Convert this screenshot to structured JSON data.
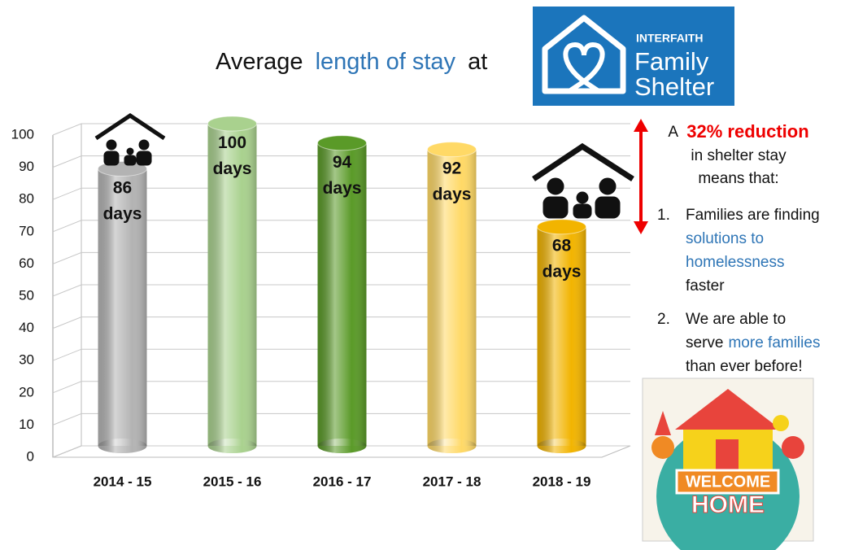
{
  "chart_data": {
    "type": "bar",
    "title": [
      "Average",
      "length of stay",
      "at"
    ],
    "categories": [
      "2014 - 15",
      "2015 - 16",
      "2016 - 17",
      "2017 - 18",
      "2018 - 19"
    ],
    "values": [
      86,
      100,
      94,
      92,
      68
    ],
    "value_labels": [
      "86 days",
      "100 days",
      "94 days",
      "92 days",
      "68 days"
    ],
    "colors": [
      "#b3b3b3",
      "#a9d18e",
      "#5a9a28",
      "#ffd966",
      "#f2b400"
    ],
    "ylim": [
      0,
      100
    ],
    "yticks": [
      0,
      10,
      20,
      30,
      40,
      50,
      60,
      70,
      80,
      90,
      100
    ],
    "grid": true
  },
  "logo": [
    "INTERFAITH",
    "Family",
    "Shelter"
  ],
  "sidebar": {
    "intro": [
      "A",
      "32% reduction",
      "in shelter stay",
      "means that:"
    ],
    "points": [
      {
        "number": "1.",
        "lines": [
          [
            "Families are finding"
          ],
          [
            "solutions to"
          ],
          [
            "homelessness"
          ],
          [
            "faster"
          ]
        ]
      },
      {
        "number": "2.",
        "lines": [
          [
            "We are able to"
          ],
          [
            "serve",
            "more families"
          ],
          [
            "than ever before!"
          ]
        ]
      }
    ]
  },
  "image_text": [
    "WELCOME",
    "HOME"
  ]
}
